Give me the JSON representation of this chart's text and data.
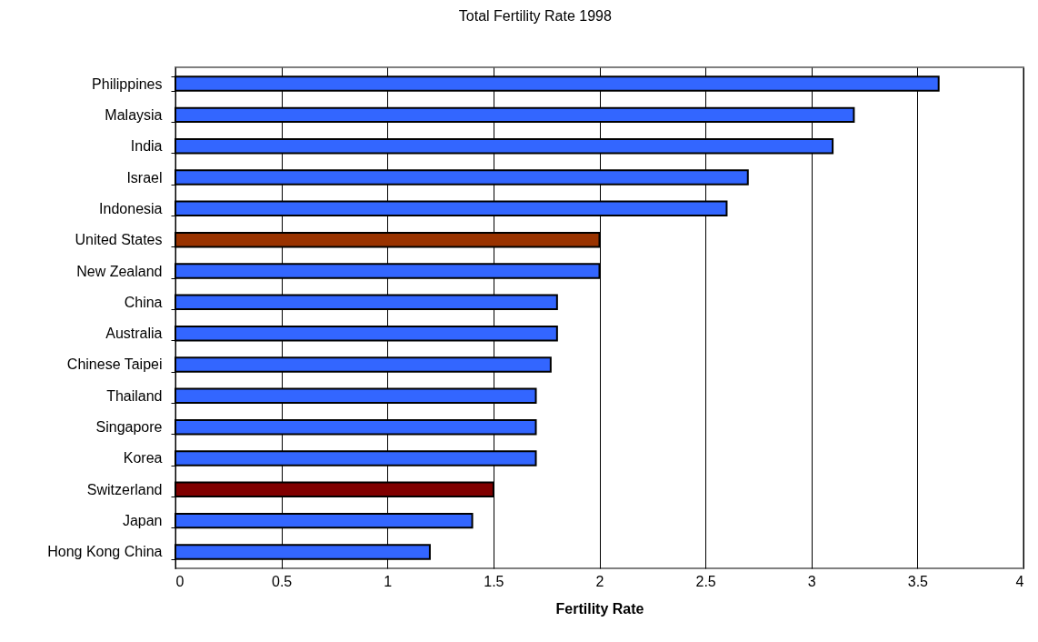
{
  "chart_data": {
    "type": "bar",
    "orientation": "horizontal",
    "title": "Total Fertility Rate 1998",
    "xlabel": "Fertility Rate",
    "categories": [
      "Philippines",
      "Malaysia",
      "India",
      "Israel",
      "Indonesia",
      "United States",
      "New Zealand",
      "China",
      "Australia",
      "Chinese Taipei",
      "Thailand",
      "Singapore",
      "Korea",
      "Switzerland",
      "Japan",
      "Hong Kong China"
    ],
    "values": [
      3.6,
      3.2,
      3.1,
      2.7,
      2.6,
      2.0,
      2.0,
      1.8,
      1.8,
      1.77,
      1.7,
      1.7,
      1.7,
      1.5,
      1.4,
      1.2
    ],
    "colors": [
      "#3366ff",
      "#3366ff",
      "#3366ff",
      "#3366ff",
      "#3366ff",
      "#993300",
      "#3366ff",
      "#3366ff",
      "#3366ff",
      "#3366ff",
      "#3366ff",
      "#3366ff",
      "#3366ff",
      "#800000",
      "#3366ff",
      "#3366ff"
    ],
    "xlim": [
      0,
      4
    ],
    "xticks": [
      0,
      0.5,
      1,
      1.5,
      2,
      2.5,
      3,
      3.5,
      4
    ],
    "grid": "x"
  }
}
